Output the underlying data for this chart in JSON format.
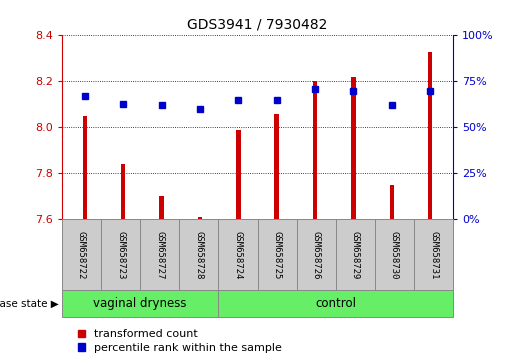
{
  "title": "GDS3941 / 7930482",
  "samples": [
    "GSM658722",
    "GSM658723",
    "GSM658727",
    "GSM658728",
    "GSM658724",
    "GSM658725",
    "GSM658726",
    "GSM658729",
    "GSM658730",
    "GSM658731"
  ],
  "red_values": [
    8.05,
    7.84,
    7.7,
    7.61,
    7.99,
    8.06,
    8.2,
    8.22,
    7.75,
    8.33
  ],
  "blue_values": [
    67,
    63,
    62,
    60,
    65,
    65,
    71,
    70,
    62,
    70
  ],
  "ylim_left": [
    7.6,
    8.4
  ],
  "ylim_right": [
    0,
    100
  ],
  "yticks_left": [
    7.6,
    7.8,
    8.0,
    8.2,
    8.4
  ],
  "yticks_right": [
    0,
    25,
    50,
    75,
    100
  ],
  "groups": [
    {
      "label": "vaginal dryness",
      "start": 0,
      "end": 4
    },
    {
      "label": "control",
      "start": 4,
      "end": 10
    }
  ],
  "bar_color": "#CC0000",
  "dot_color": "#0000CC",
  "baseline": 7.6,
  "legend_red": "transformed count",
  "legend_blue": "percentile rank within the sample",
  "disease_state_label": "disease state",
  "grid_color": "#000000",
  "right_axis_color": "#0000CC",
  "left_axis_color": "#CC0000",
  "bar_width": 0.12,
  "green_color": "#66EE66",
  "grey_box_color": "#CCCCCC",
  "grey_border_color": "#888888"
}
